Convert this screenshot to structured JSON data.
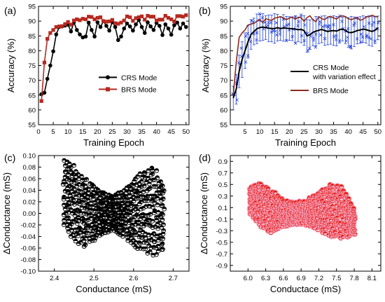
{
  "chart_data": [
    {
      "panel": "(a)",
      "type": "line",
      "xlabel": "Training Epoch",
      "ylabel": "Accuracy (%)",
      "xlim": [
        0,
        51
      ],
      "ylim": [
        55,
        95
      ],
      "xticks": [
        0,
        5,
        10,
        15,
        20,
        25,
        30,
        35,
        40,
        45,
        50
      ],
      "yticks": [
        55,
        60,
        65,
        70,
        75,
        80,
        85,
        90,
        95
      ],
      "legend_position": "center-right",
      "series": [
        {
          "name": "CRS Mode",
          "color": "#000000",
          "marker": "circle",
          "x": [
            1,
            2,
            3,
            4,
            5,
            6,
            7,
            8,
            9,
            10,
            11,
            12,
            13,
            14,
            15,
            16,
            17,
            18,
            19,
            20,
            21,
            22,
            23,
            24,
            25,
            26,
            27,
            28,
            29,
            30,
            31,
            32,
            33,
            34,
            35,
            36,
            37,
            38,
            39,
            40,
            41,
            42,
            43,
            44,
            45,
            46,
            47,
            48,
            49,
            50
          ],
          "values": [
            65.3,
            65.8,
            70.5,
            75,
            79.8,
            85.5,
            88,
            88.2,
            88.5,
            88.8,
            86.5,
            89.6,
            87,
            85.5,
            84.5,
            84.8,
            89.5,
            87,
            84.8,
            89.6,
            88,
            90,
            88.4,
            86.8,
            89.7,
            88,
            83.6,
            84.8,
            87.5,
            89.2,
            88.2,
            86.8,
            88.9,
            90.4,
            88,
            86,
            89.6,
            88.2,
            87,
            89.4,
            88.4,
            85.3,
            88.9,
            87.5,
            85.4,
            88.6,
            89.5,
            87.5,
            89.2,
            88
          ]
        },
        {
          "name": "BRS Mode",
          "color": "#b5291f",
          "marker": "square",
          "x": [
            1,
            2,
            3,
            4,
            5,
            6,
            7,
            8,
            9,
            10,
            11,
            12,
            13,
            14,
            15,
            16,
            17,
            18,
            19,
            20,
            21,
            22,
            23,
            24,
            25,
            26,
            27,
            28,
            29,
            30,
            31,
            32,
            33,
            34,
            35,
            36,
            37,
            38,
            39,
            40,
            41,
            42,
            43,
            44,
            45,
            46,
            47,
            48,
            49,
            50
          ],
          "values": [
            63,
            76,
            84,
            86,
            87,
            88,
            88.2,
            88.3,
            89,
            89.7,
            88.8,
            90.2,
            90.6,
            90.3,
            90.8,
            90.6,
            91.5,
            91.4,
            90.6,
            91.1,
            91.3,
            90,
            89.8,
            89.9,
            90.4,
            89.3,
            89.1,
            89.5,
            90.2,
            91.6,
            91.3,
            90.1,
            91,
            91.3,
            91.6,
            90.5,
            91.8,
            91.5,
            91.5,
            90.2,
            90.5,
            90.5,
            91.8,
            91.1,
            90.6,
            89.9,
            91.7,
            91.7,
            91.5,
            92
          ]
        }
      ]
    },
    {
      "panel": "(b)",
      "type": "line",
      "xlabel": "Training Epoch",
      "ylabel": "Accuracy (%)",
      "xlim": [
        0,
        51
      ],
      "ylim": [
        55,
        95
      ],
      "xticks": [
        5,
        10,
        15,
        20,
        25,
        30,
        35,
        40,
        45,
        50
      ],
      "yticks": [
        55,
        60,
        65,
        70,
        75,
        80,
        85,
        90,
        95
      ],
      "legend_position": "center-right",
      "series": [
        {
          "name": "CRS Mode with variation effect",
          "color": "#000000",
          "error_bar_color": "#1f3fd6",
          "x": [
            1,
            2,
            3,
            4,
            5,
            6,
            7,
            8,
            9,
            10,
            11,
            12,
            13,
            14,
            15,
            16,
            17,
            18,
            19,
            20,
            21,
            22,
            23,
            24,
            25,
            26,
            27,
            28,
            29,
            30,
            31,
            32,
            33,
            34,
            35,
            36,
            37,
            38,
            39,
            40,
            41,
            42,
            43,
            44,
            45,
            46,
            47,
            48,
            49,
            50
          ],
          "values": [
            64,
            67,
            73,
            77,
            80,
            83,
            85.5,
            86.5,
            87.4,
            87.8,
            88,
            87.8,
            87.6,
            87.5,
            87.5,
            87.8,
            87.5,
            87.7,
            87.6,
            87.5,
            87.4,
            87.3,
            87.1,
            87.2,
            86.8,
            85,
            85.4,
            86.2,
            86.6,
            86.9,
            87.2,
            86.8,
            86.5,
            86.7,
            86.8,
            86.6,
            87.1,
            87.3,
            86.9,
            86.2,
            86.1,
            86.4,
            86.8,
            87,
            87.3,
            87.1,
            86.8,
            86.5,
            86.9,
            87.7
          ],
          "error": [
            4,
            5,
            5.5,
            6,
            6,
            5.5,
            5,
            4.5,
            5,
            4.5,
            4.5,
            4,
            4.5,
            4.5,
            5,
            4.5,
            4,
            4.5,
            4,
            4,
            4,
            4.5,
            4,
            4.5,
            5,
            5.5,
            5,
            4.5,
            5,
            4.5,
            4.5,
            5,
            4.5,
            4.5,
            5,
            5,
            4.5,
            4,
            4.5,
            5,
            5.5,
            5,
            4.5,
            4.5,
            4.5,
            4.5,
            5,
            5,
            4.5,
            4
          ]
        },
        {
          "name": "BRS Mode",
          "color": "#8b2a1e",
          "x": [
            1,
            2,
            3,
            4,
            5,
            6,
            7,
            8,
            9,
            10,
            11,
            12,
            13,
            14,
            15,
            16,
            17,
            18,
            19,
            20,
            21,
            22,
            23,
            24,
            25,
            26,
            27,
            28,
            29,
            30,
            31,
            32,
            33,
            34,
            35,
            36,
            37,
            38,
            39,
            40,
            41,
            42,
            43,
            44,
            45,
            46,
            47,
            48,
            49,
            50
          ],
          "values": [
            65,
            76,
            84.5,
            86,
            87,
            88.7,
            89,
            89.2,
            90,
            90.5,
            89.5,
            90.8,
            90.5,
            90.2,
            91,
            91.2,
            91.5,
            91,
            90.5,
            91,
            91.4,
            90.6,
            91.3,
            91.2,
            89.9,
            91.2,
            91.8,
            90.4,
            89.8,
            91.5,
            90.8,
            90.5,
            91.4,
            91.6,
            91.1,
            90.7,
            91.5,
            91.8,
            91.5,
            90.8,
            90.5,
            90.9,
            91.2,
            90.3,
            90.6,
            91.4,
            91.5,
            92,
            91.6,
            91.4
          ]
        }
      ]
    },
    {
      "panel": "(c)",
      "type": "scatter",
      "xlabel": "Conductance (mS)",
      "ylabel": "ΔConductance (mS)",
      "xlim": [
        2.36,
        2.74
      ],
      "ylim": [
        -0.1,
        0.1
      ],
      "xticks": [
        2.4,
        2.5,
        2.6,
        2.7
      ],
      "yticks": [
        -0.1,
        -0.08,
        -0.06,
        -0.04,
        -0.02,
        0.0,
        0.02,
        0.04,
        0.06,
        0.08,
        0.1
      ],
      "ytick_labels": [
        "-0.10",
        "-0.08",
        "-0.06",
        "-0.04",
        "-0.02",
        "0.00",
        "0.02",
        "0.04",
        "0.06",
        "0.08",
        "0.10"
      ],
      "marker_color": "#000000",
      "envelope_x": [
        2.425,
        2.45,
        2.475,
        2.5,
        2.525,
        2.55,
        2.575,
        2.6,
        2.625,
        2.65,
        2.675
      ],
      "envelope_upper": [
        0.09,
        0.08,
        0.06,
        0.045,
        0.035,
        0.03,
        0.038,
        0.055,
        0.07,
        0.078,
        0.05
      ],
      "envelope_lower": [
        -0.02,
        -0.045,
        -0.055,
        -0.045,
        -0.035,
        -0.03,
        -0.038,
        -0.055,
        -0.062,
        -0.07,
        -0.062
      ]
    },
    {
      "panel": "(d)",
      "type": "scatter",
      "xlabel": "Conductace (mS)",
      "ylabel": "ΔConductance (mS)",
      "xlim": [
        5.7,
        8.25
      ],
      "ylim": [
        -1.0,
        1.0
      ],
      "xticks": [
        6.0,
        6.3,
        6.6,
        6.9,
        7.2,
        7.5,
        7.8,
        8.1
      ],
      "yticks": [
        -0.9,
        -0.7,
        -0.5,
        -0.3,
        -0.1,
        0.1,
        0.3,
        0.5,
        0.7,
        0.9
      ],
      "marker_color": "#e8231b",
      "envelope_x": [
        6.05,
        6.2,
        6.4,
        6.6,
        6.8,
        7.0,
        7.2,
        7.4,
        7.6,
        7.8
      ],
      "envelope_upper": [
        0.45,
        0.52,
        0.38,
        0.22,
        0.18,
        0.22,
        0.36,
        0.48,
        0.44,
        0.08
      ],
      "envelope_lower": [
        -0.02,
        -0.22,
        -0.32,
        -0.22,
        -0.18,
        -0.2,
        -0.28,
        -0.38,
        -0.42,
        -0.35
      ]
    }
  ]
}
